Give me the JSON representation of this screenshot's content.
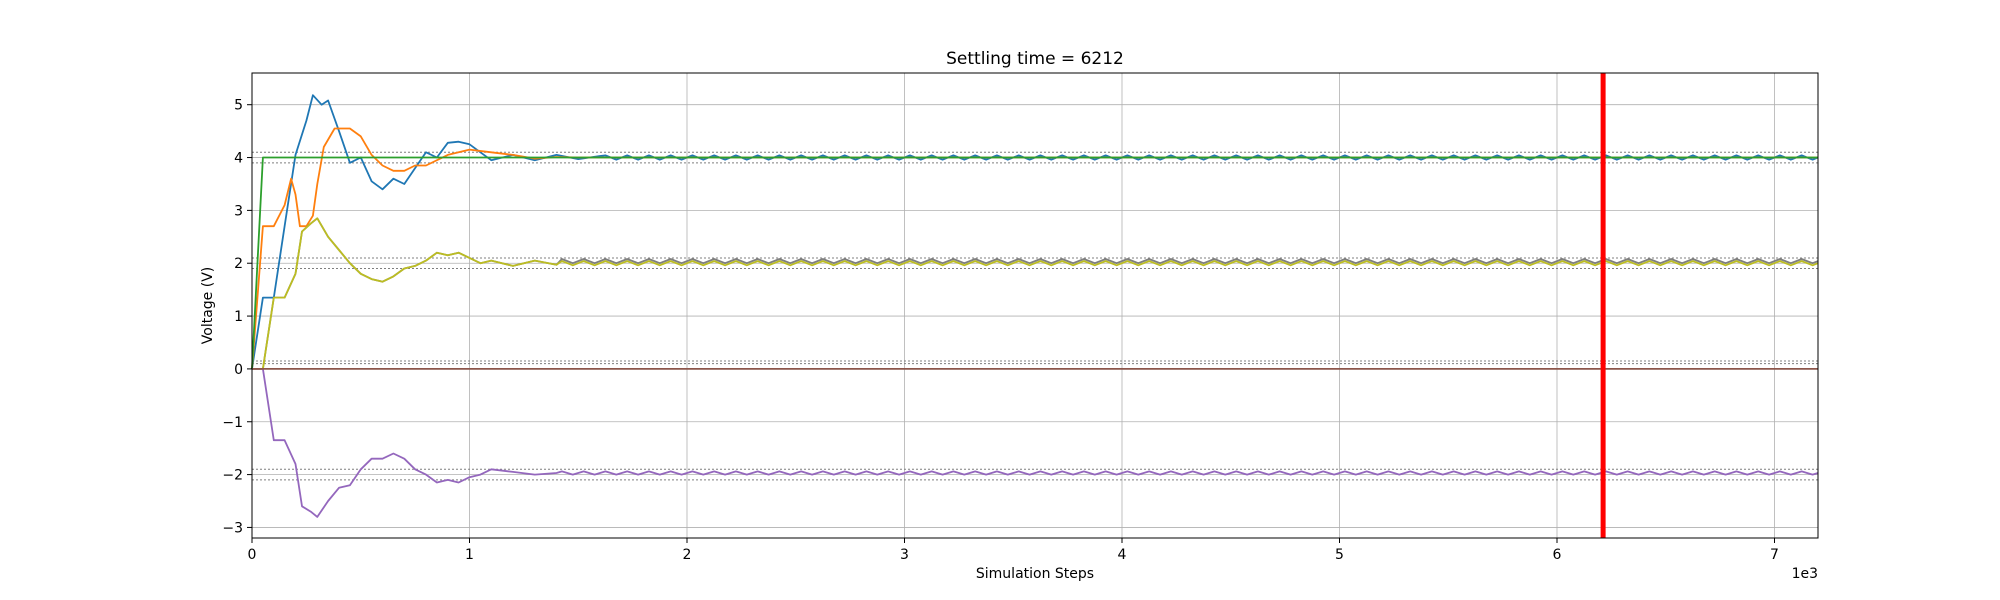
{
  "chart_data": {
    "type": "line",
    "title": "Settling time = 6212",
    "xlabel": "Simulation Steps",
    "ylabel": "Voltage (V)",
    "x_offset_label": "1e3",
    "xlim": [
      0,
      7.2
    ],
    "ylim": [
      -3.2,
      5.6
    ],
    "x_ticks": [
      0,
      1,
      2,
      3,
      4,
      5,
      6,
      7
    ],
    "y_ticks": [
      -3,
      -2,
      -1,
      0,
      1,
      2,
      3,
      4,
      5
    ],
    "x_tick_labels": [
      "0",
      "1",
      "2",
      "3",
      "4",
      "5",
      "6",
      "7"
    ],
    "y_tick_labels": [
      "−3",
      "−2",
      "−1",
      "0",
      "1",
      "2",
      "3",
      "4",
      "5"
    ],
    "grid": true,
    "settling_marker": {
      "x": 6.212,
      "color": "#ff0000"
    },
    "tolerance_band_lines": [
      -2.1,
      -1.9,
      0.1,
      0.15,
      1.9,
      2.1,
      3.9,
      4.1
    ],
    "colors": {
      "blue": "#1f77b4",
      "orange": "#ff7f0e",
      "green": "#2ca02c",
      "olive": "#bcbd22",
      "purple": "#9467bd",
      "brown": "#8c564b",
      "gray": "#7f7f7f"
    },
    "series": [
      {
        "color": "#1f77b4",
        "keypoints": [
          [
            0,
            0
          ],
          [
            0.05,
            1.35
          ],
          [
            0.1,
            1.35
          ],
          [
            0.15,
            2.7
          ],
          [
            0.2,
            4.05
          ],
          [
            0.25,
            4.7
          ],
          [
            0.28,
            5.18
          ],
          [
            0.32,
            5.0
          ],
          [
            0.35,
            5.08
          ],
          [
            0.4,
            4.5
          ],
          [
            0.45,
            3.9
          ],
          [
            0.5,
            4.0
          ],
          [
            0.55,
            3.55
          ],
          [
            0.6,
            3.4
          ],
          [
            0.65,
            3.6
          ],
          [
            0.7,
            3.5
          ],
          [
            0.75,
            3.8
          ],
          [
            0.8,
            4.1
          ],
          [
            0.85,
            4.0
          ],
          [
            0.9,
            4.28
          ],
          [
            0.95,
            4.3
          ],
          [
            1.0,
            4.25
          ],
          [
            1.05,
            4.1
          ],
          [
            1.1,
            3.95
          ],
          [
            1.2,
            4.05
          ],
          [
            1.3,
            3.95
          ],
          [
            1.4,
            4.05
          ],
          [
            1.5,
            3.97
          ],
          [
            1.6,
            4.03
          ]
        ],
        "osc_amplitude": 0.04,
        "osc_period": 0.1,
        "base": 4.0
      },
      {
        "color": "#ff7f0e",
        "keypoints": [
          [
            0,
            0
          ],
          [
            0.05,
            2.7
          ],
          [
            0.1,
            2.7
          ],
          [
            0.15,
            3.1
          ],
          [
            0.18,
            3.6
          ],
          [
            0.2,
            3.3
          ],
          [
            0.22,
            2.7
          ],
          [
            0.25,
            2.7
          ],
          [
            0.28,
            2.9
          ],
          [
            0.3,
            3.5
          ],
          [
            0.33,
            4.2
          ],
          [
            0.38,
            4.55
          ],
          [
            0.45,
            4.55
          ],
          [
            0.5,
            4.4
          ],
          [
            0.55,
            4.05
          ],
          [
            0.6,
            3.85
          ],
          [
            0.65,
            3.75
          ],
          [
            0.7,
            3.75
          ],
          [
            0.75,
            3.85
          ],
          [
            0.8,
            3.85
          ],
          [
            0.9,
            4.05
          ],
          [
            1.0,
            4.15
          ],
          [
            1.1,
            4.1
          ],
          [
            1.2,
            4.05
          ],
          [
            1.3,
            3.98
          ],
          [
            1.4,
            4.01
          ],
          [
            1.5,
            4.0
          ]
        ],
        "osc_amplitude": 0.0,
        "osc_period": 0.1,
        "base": 4.0
      },
      {
        "color": "#2ca02c",
        "keypoints": [
          [
            0,
            0
          ],
          [
            0.05,
            4.0
          ],
          [
            7.2,
            4.0
          ]
        ],
        "osc_amplitude": 0.0,
        "osc_period": 0.1,
        "base": 4.0
      },
      {
        "color": "#7f7f7f",
        "keypoints": [
          [
            0,
            0
          ],
          [
            0.05,
            0
          ],
          [
            0.1,
            1.35
          ],
          [
            0.15,
            1.35
          ],
          [
            0.2,
            1.8
          ],
          [
            0.23,
            2.6
          ],
          [
            0.27,
            2.75
          ],
          [
            0.3,
            2.85
          ],
          [
            0.35,
            2.5
          ],
          [
            0.4,
            2.25
          ],
          [
            0.45,
            2.0
          ],
          [
            0.5,
            1.8
          ],
          [
            0.55,
            1.7
          ],
          [
            0.6,
            1.65
          ],
          [
            0.65,
            1.75
          ],
          [
            0.7,
            1.9
          ],
          [
            0.75,
            1.95
          ],
          [
            0.8,
            2.05
          ],
          [
            0.85,
            2.2
          ],
          [
            0.9,
            2.15
          ],
          [
            0.95,
            2.2
          ],
          [
            1.0,
            2.1
          ],
          [
            1.05,
            2.0
          ],
          [
            1.1,
            2.05
          ],
          [
            1.2,
            1.95
          ],
          [
            1.3,
            2.05
          ],
          [
            1.4,
            1.97
          ]
        ],
        "osc_amplitude": 0.04,
        "osc_period": 0.1,
        "base": 2.04
      },
      {
        "color": "#bcbd22",
        "keypoints": [
          [
            0,
            0
          ],
          [
            0.05,
            0
          ],
          [
            0.1,
            1.35
          ],
          [
            0.15,
            1.35
          ],
          [
            0.2,
            1.8
          ],
          [
            0.23,
            2.6
          ],
          [
            0.27,
            2.75
          ],
          [
            0.3,
            2.85
          ],
          [
            0.35,
            2.5
          ],
          [
            0.4,
            2.25
          ],
          [
            0.45,
            2.0
          ],
          [
            0.5,
            1.8
          ],
          [
            0.55,
            1.7
          ],
          [
            0.6,
            1.65
          ],
          [
            0.65,
            1.75
          ],
          [
            0.7,
            1.9
          ],
          [
            0.75,
            1.95
          ],
          [
            0.8,
            2.05
          ],
          [
            0.85,
            2.2
          ],
          [
            0.9,
            2.15
          ],
          [
            0.95,
            2.2
          ],
          [
            1.0,
            2.1
          ],
          [
            1.05,
            2.0
          ],
          [
            1.1,
            2.05
          ],
          [
            1.2,
            1.95
          ],
          [
            1.3,
            2.05
          ],
          [
            1.4,
            1.97
          ]
        ],
        "osc_amplitude": 0.04,
        "osc_period": 0.1,
        "base": 2.0
      },
      {
        "color": "#9467bd",
        "keypoints": [
          [
            0,
            0
          ],
          [
            0.05,
            0
          ],
          [
            0.1,
            -1.35
          ],
          [
            0.15,
            -1.35
          ],
          [
            0.2,
            -1.8
          ],
          [
            0.23,
            -2.6
          ],
          [
            0.27,
            -2.7
          ],
          [
            0.3,
            -2.8
          ],
          [
            0.35,
            -2.5
          ],
          [
            0.4,
            -2.25
          ],
          [
            0.45,
            -2.2
          ],
          [
            0.5,
            -1.9
          ],
          [
            0.55,
            -1.7
          ],
          [
            0.6,
            -1.7
          ],
          [
            0.65,
            -1.6
          ],
          [
            0.7,
            -1.7
          ],
          [
            0.75,
            -1.9
          ],
          [
            0.8,
            -2.0
          ],
          [
            0.85,
            -2.15
          ],
          [
            0.9,
            -2.1
          ],
          [
            0.95,
            -2.15
          ],
          [
            1.0,
            -2.05
          ],
          [
            1.05,
            -2.0
          ],
          [
            1.1,
            -1.9
          ],
          [
            1.2,
            -1.95
          ],
          [
            1.3,
            -2.0
          ],
          [
            1.4,
            -1.97
          ]
        ],
        "osc_amplitude": 0.03,
        "osc_period": 0.1,
        "base": -1.97
      },
      {
        "color": "#8c564b",
        "keypoints": [
          [
            0,
            0
          ],
          [
            7.2,
            0.0
          ]
        ],
        "osc_amplitude": 0.0,
        "osc_period": 0.1,
        "base": 0.0
      }
    ]
  }
}
